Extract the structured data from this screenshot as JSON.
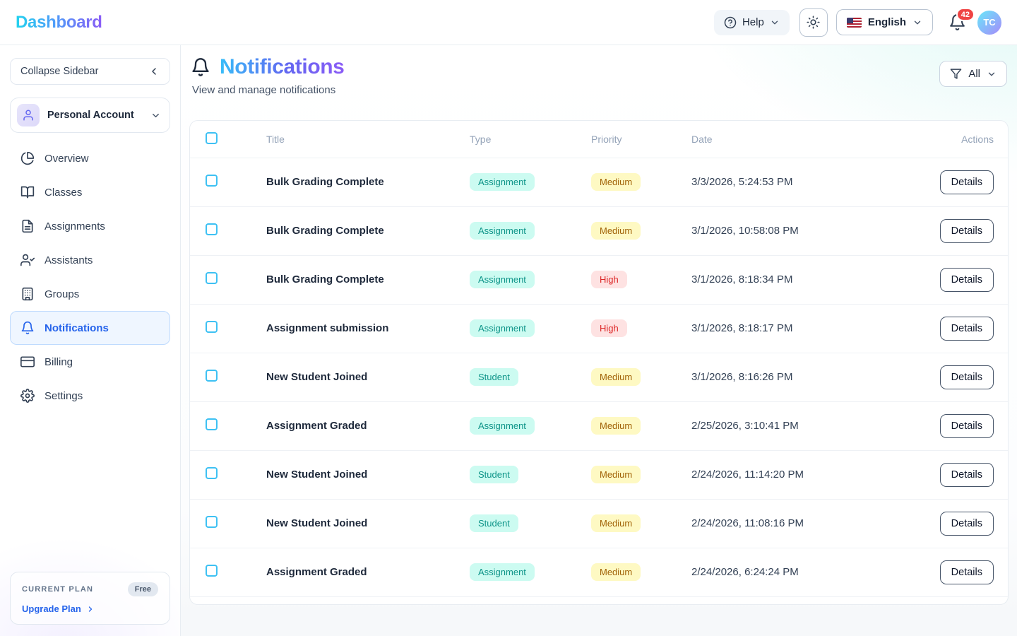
{
  "header": {
    "logo": "Dashboard",
    "help_label": "Help",
    "language": "English",
    "notification_count": "42",
    "avatar_initials": "TC"
  },
  "sidebar": {
    "collapse_label": "Collapse Sidebar",
    "account_label": "Personal Account",
    "items": [
      {
        "label": "Overview",
        "icon": "pie-chart",
        "active": false
      },
      {
        "label": "Classes",
        "icon": "book-open",
        "active": false
      },
      {
        "label": "Assignments",
        "icon": "file-text",
        "active": false
      },
      {
        "label": "Assistants",
        "icon": "user-check",
        "active": false
      },
      {
        "label": "Groups",
        "icon": "building",
        "active": false
      },
      {
        "label": "Notifications",
        "icon": "bell",
        "active": true
      },
      {
        "label": "Billing",
        "icon": "credit-card",
        "active": false
      },
      {
        "label": "Settings",
        "icon": "gear",
        "active": false
      }
    ],
    "plan": {
      "label": "CURRENT PLAN",
      "badge": "Free",
      "upgrade_label": "Upgrade Plan"
    }
  },
  "main": {
    "title": "Notifications",
    "subtitle": "View and manage notifications",
    "filter_label": "All",
    "table": {
      "columns": [
        "Title",
        "Type",
        "Priority",
        "Date",
        "Actions"
      ],
      "details_label": "Details",
      "rows": [
        {
          "title": "Bulk Grading Complete",
          "type": "Assignment",
          "priority": "Medium",
          "date": "3/3/2026, 5:24:53 PM"
        },
        {
          "title": "Bulk Grading Complete",
          "type": "Assignment",
          "priority": "Medium",
          "date": "3/1/2026, 10:58:08 PM"
        },
        {
          "title": "Bulk Grading Complete",
          "type": "Assignment",
          "priority": "High",
          "date": "3/1/2026, 8:18:34 PM"
        },
        {
          "title": "Assignment submission",
          "type": "Assignment",
          "priority": "High",
          "date": "3/1/2026, 8:18:17 PM"
        },
        {
          "title": "New Student Joined",
          "type": "Student",
          "priority": "Medium",
          "date": "3/1/2026, 8:16:26 PM"
        },
        {
          "title": "Assignment Graded",
          "type": "Assignment",
          "priority": "Medium",
          "date": "2/25/2026, 3:10:41 PM"
        },
        {
          "title": "New Student Joined",
          "type": "Student",
          "priority": "Medium",
          "date": "2/24/2026, 11:14:20 PM"
        },
        {
          "title": "New Student Joined",
          "type": "Student",
          "priority": "Medium",
          "date": "2/24/2026, 11:08:16 PM"
        },
        {
          "title": "Assignment Graded",
          "type": "Assignment",
          "priority": "Medium",
          "date": "2/24/2026, 6:24:24 PM"
        }
      ]
    }
  },
  "colors": {
    "accent_blue": "#2563eb",
    "logo_gradient_start": "#22d3ee",
    "logo_gradient_end": "#8b5cf6",
    "title_gradient_start": "#38bdf8",
    "title_gradient_end": "#8b5cf6",
    "badge_type_bg": "#ccfbf1",
    "badge_type_text": "#0d9488",
    "badge_medium_bg": "#fef9c3",
    "badge_medium_text": "#a16207",
    "badge_high_bg": "#fee2e2",
    "badge_high_text": "#dc2626",
    "checkbox_border": "#3ec1f3",
    "notification_badge": "#ef4444",
    "active_nav_bg": "#eff6ff"
  }
}
